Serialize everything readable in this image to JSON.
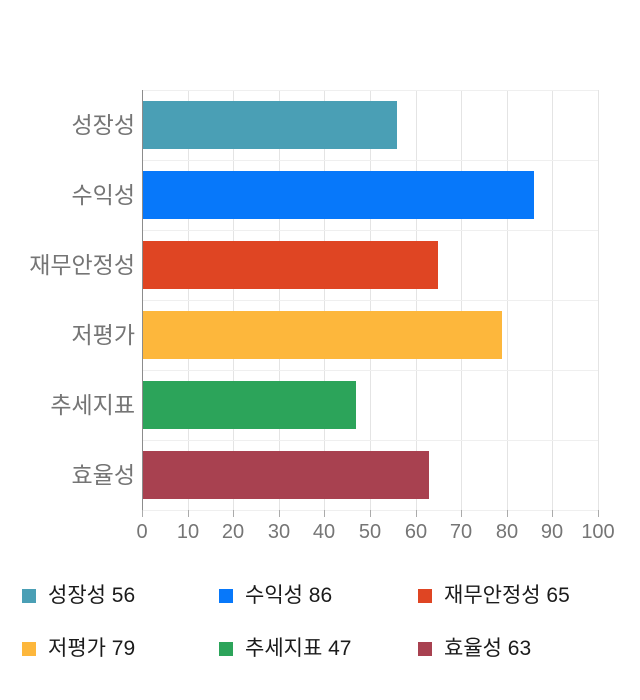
{
  "colors": {
    "background": "#ffffff",
    "axis_line": "#8c8c8c",
    "value_grid": "#e4e4e4",
    "category_grid": "#efefef",
    "tick_mark": "#ababab",
    "axis_text": "#757575",
    "legend_text": "#1b1b1b"
  },
  "chart_data": {
    "type": "bar",
    "orientation": "horizontal",
    "title": "",
    "xlabel": "",
    "ylabel": "",
    "categories": [
      "성장성",
      "수익성",
      "재무안정성",
      "저평가",
      "추세지표",
      "효율성"
    ],
    "values": [
      56,
      86,
      65,
      79,
      47,
      63
    ],
    "bar_colors": [
      "#4A9FB5",
      "#0778FA",
      "#DF4523",
      "#FDB73C",
      "#2CA45A",
      "#A84150"
    ],
    "xlim": [
      0,
      100
    ],
    "x_ticks": [
      0,
      10,
      20,
      30,
      40,
      50,
      60,
      70,
      80,
      90,
      100
    ],
    "grid": "on",
    "legend_position": "bottom",
    "legend": [
      {
        "label": "성장성 56",
        "color": "#4A9FB5"
      },
      {
        "label": "수익성 86",
        "color": "#0778FA"
      },
      {
        "label": "재무안정성 65",
        "color": "#DF4523"
      },
      {
        "label": "저평가 79",
        "color": "#FDB73C"
      },
      {
        "label": "추세지표 47",
        "color": "#2CA45A"
      },
      {
        "label": "효율성 63",
        "color": "#A84150"
      }
    ]
  }
}
